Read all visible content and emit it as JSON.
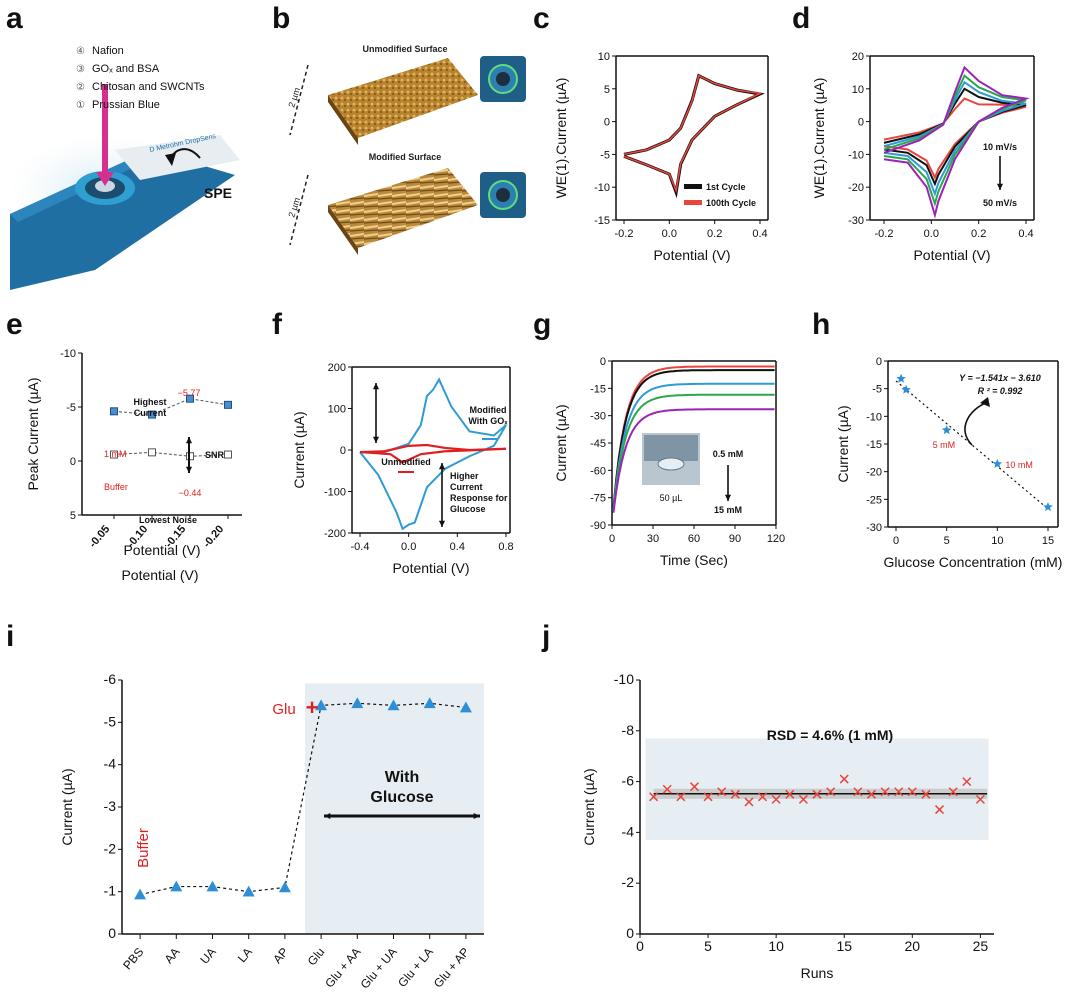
{
  "panels": {
    "a": {
      "label": "a",
      "layers": [
        {
          "num": "④",
          "text": "Nafion"
        },
        {
          "num": "③",
          "text": "GOₓ and BSA"
        },
        {
          "num": "②",
          "text": "Chitosan and SWCNTs"
        },
        {
          "num": "①",
          "text": "Prussian Blue"
        }
      ],
      "spe_label": "SPE",
      "electrode_text": "D Metrohm DropSens"
    },
    "b": {
      "label": "b",
      "unmodified_title": "Unmodified Surface",
      "modified_title": "Modified Surface",
      "scale": "2 µm"
    },
    "c": {
      "label": "c"
    },
    "d": {
      "label": "d"
    },
    "e": {
      "label": "e"
    },
    "f": {
      "label": "f"
    },
    "g": {
      "label": "g"
    },
    "h": {
      "label": "h"
    },
    "i": {
      "label": "i"
    },
    "j": {
      "label": "j"
    }
  },
  "chart_data": [
    {
      "id": "c",
      "type": "line",
      "xlabel": "Potential (V)",
      "ylabel": "WE(1).Current (µA)",
      "xlim": [
        -0.2,
        0.4
      ],
      "ylim": [
        -15,
        10
      ],
      "xticks": [
        "-0.2",
        "0.0",
        "0.2",
        "0.4"
      ],
      "yticks": [
        "-15",
        "-10",
        "-5",
        "0",
        "5",
        "10"
      ],
      "series": [
        {
          "name": "1st Cycle",
          "color": "#111111",
          "x": [
            -0.2,
            -0.1,
            0.0,
            0.05,
            0.1,
            0.13,
            0.2,
            0.3,
            0.4,
            0.3,
            0.2,
            0.1,
            0.05,
            0.03,
            0.0,
            -0.1,
            -0.2
          ],
          "y": [
            -5.0,
            -4.3,
            -2.8,
            -1.0,
            3.2,
            7.0,
            5.8,
            4.8,
            4.2,
            2.6,
            0.8,
            -2.8,
            -6.5,
            -10.8,
            -8.0,
            -6.6,
            -5.3
          ]
        },
        {
          "name": "100th Cycle",
          "color": "#e8453c",
          "x": [
            -0.2,
            -0.1,
            0.0,
            0.05,
            0.1,
            0.13,
            0.2,
            0.3,
            0.4,
            0.3,
            0.2,
            0.1,
            0.05,
            0.03,
            0.0,
            -0.1,
            -0.2
          ],
          "y": [
            -5.0,
            -4.3,
            -2.8,
            -1.0,
            3.1,
            7.0,
            5.8,
            4.8,
            4.3,
            2.6,
            0.8,
            -2.8,
            -6.4,
            -10.5,
            -8.0,
            -6.6,
            -5.3
          ]
        }
      ]
    },
    {
      "id": "d",
      "type": "line",
      "xlabel": "Potential (V)",
      "ylabel": "WE(1).Current (µA)",
      "xlim": [
        -0.2,
        0.4
      ],
      "ylim": [
        -30,
        20
      ],
      "xticks": [
        "-0.2",
        "0.0",
        "0.2",
        "0.4"
      ],
      "yticks": [
        "-30",
        "-20",
        "-10",
        "0",
        "10",
        "20"
      ],
      "annotation_top": "10 mV/s",
      "annotation_bottom": "50 mV/s",
      "series": [
        {
          "color": "#e8453c",
          "peak_ox": 7,
          "peak_red": -17,
          "end": 4.5,
          "start": -5.5
        },
        {
          "color": "#111111",
          "peak_ox": 10,
          "peak_red": -19,
          "end": 5.0,
          "start": -6.5
        },
        {
          "color": "#2e9bd6",
          "peak_ox": 12,
          "peak_red": -22,
          "end": 5.5,
          "start": -7.5
        },
        {
          "color": "#2aa84a",
          "peak_ox": 14,
          "peak_red": -25,
          "end": 6.5,
          "start": -8.5
        },
        {
          "color": "#9b23b8",
          "peak_ox": 16.5,
          "peak_red": -28.5,
          "end": 7.0,
          "start": -9.5
        }
      ]
    },
    {
      "id": "e",
      "type": "scatter",
      "xlabel": "Potential (V)",
      "ylabel": "Peak Current (µA)",
      "ylim": [
        5,
        -10
      ],
      "categories": [
        "-0.05",
        "-0.10",
        "-0.15",
        "-0.20"
      ],
      "yticks": [
        "-10",
        "-5",
        "0",
        "5"
      ],
      "series": [
        {
          "name": "1 mM",
          "values": [
            -4.6,
            -4.3,
            -5.77,
            -5.2
          ]
        },
        {
          "name": "Buffer",
          "values": [
            -0.6,
            -0.8,
            -0.44,
            -0.6
          ]
        }
      ],
      "annotations": {
        "highest": "Highest\nCurrent",
        "highest_val": "−5.77",
        "snr": "SNR",
        "lowest_val": "−0.44",
        "lowest": "Lowest Noise",
        "one_mm": "1 mM",
        "buffer": "Buffer"
      }
    },
    {
      "id": "f",
      "type": "line",
      "xlabel": "Potential (V)",
      "ylabel": "Current (µA)",
      "xlim": [
        -0.4,
        0.8
      ],
      "ylim": [
        -200,
        200
      ],
      "xticks": [
        "-0.4",
        "0.0",
        "0.4",
        "0.8"
      ],
      "yticks": [
        "-200",
        "-100",
        "0",
        "100",
        "200"
      ],
      "annotations": {
        "modified": "Modified\nWith GOₓ",
        "unmodified": "Unmodified",
        "higher": "Higher\nCurrent\nResponse for\nGlucose"
      },
      "series": [
        {
          "name": "Modified With GOₓ",
          "color": "#2e9bd6"
        },
        {
          "name": "Unmodified",
          "color": "#e02020"
        }
      ]
    },
    {
      "id": "g",
      "type": "line",
      "xlabel": "Time (Sec)",
      "ylabel": "Current (µA)",
      "xlim": [
        0,
        120
      ],
      "ylim": [
        -90,
        0
      ],
      "xticks": [
        "0",
        "30",
        "60",
        "90",
        "120"
      ],
      "yticks": [
        "0",
        "-15",
        "-30",
        "-45",
        "-60",
        "-75",
        "-90"
      ],
      "annotations": {
        "top": "0.5 mM",
        "bottom": "15 mM",
        "drop": "50 µL"
      },
      "series": [
        {
          "color": "#e8453c",
          "plateau": -3
        },
        {
          "color": "#111111",
          "plateau": -5
        },
        {
          "color": "#2e9bd6",
          "plateau": -12.5
        },
        {
          "color": "#2aa84a",
          "plateau": -18.5
        },
        {
          "color": "#9b23b8",
          "plateau": -26.5
        }
      ]
    },
    {
      "id": "h",
      "type": "scatter",
      "xlabel": "Glucose Concentration (mM)",
      "ylabel": "Current (µA)",
      "xlim": [
        0,
        15
      ],
      "ylim": [
        -30,
        0
      ],
      "xticks": [
        "0",
        "5",
        "10",
        "15"
      ],
      "yticks": [
        "0",
        "-5",
        "-10",
        "-15",
        "-20",
        "-25",
        "-30"
      ],
      "equation": "Y = −1.541x − 3.610",
      "r2": "R ² = 0.992",
      "x": [
        0.5,
        1,
        5,
        10,
        15
      ],
      "y": [
        -3.2,
        -5.2,
        -12.5,
        -18.6,
        -26.4
      ],
      "point_labels": {
        "five": "5 mM",
        "ten": "10 mM"
      }
    },
    {
      "id": "i",
      "type": "scatter",
      "xlabel": "",
      "ylabel": "Current (µA)",
      "ylim": [
        0,
        -6
      ],
      "categories": [
        "PBS",
        "AA",
        "UA",
        "LA",
        "AP",
        "Glu",
        "Glu + AA",
        "Glu + UA",
        "Glu + LA",
        "Glu + AP"
      ],
      "yticks": [
        "0",
        "-1",
        "-2",
        "-3",
        "-4",
        "-5",
        "-6"
      ],
      "values": [
        -0.93,
        -1.12,
        -1.12,
        -1.0,
        -1.1,
        -5.4,
        -5.45,
        -5.4,
        -5.45,
        -5.35
      ],
      "annotations": {
        "buffer": "Buffer",
        "glu": "Glu",
        "with": "With",
        "glucose": "Glucose"
      }
    },
    {
      "id": "j",
      "type": "scatter",
      "xlabel": "Runs",
      "ylabel": "Current (µA)",
      "xlim": [
        0,
        26
      ],
      "ylim": [
        0,
        -10
      ],
      "xticks": [
        "0",
        "5",
        "10",
        "15",
        "20",
        "25"
      ],
      "yticks": [
        "0",
        "-2",
        "-4",
        "-6",
        "-8",
        "-10"
      ],
      "rsd": "RSD = 4.6% (1 mM)",
      "x": [
        1,
        2,
        3,
        4,
        5,
        6,
        7,
        8,
        9,
        10,
        11,
        12,
        13,
        14,
        15,
        16,
        17,
        18,
        19,
        20,
        21,
        22,
        23,
        24,
        25
      ],
      "y": [
        -5.4,
        -5.7,
        -5.4,
        -5.8,
        -5.4,
        -5.6,
        -5.5,
        -5.2,
        -5.4,
        -5.3,
        -5.5,
        -5.3,
        -5.5,
        -5.6,
        -6.1,
        -5.6,
        -5.5,
        -5.6,
        -5.6,
        -5.6,
        -5.5,
        -4.9,
        -5.6,
        -6.0,
        -5.3
      ]
    }
  ]
}
